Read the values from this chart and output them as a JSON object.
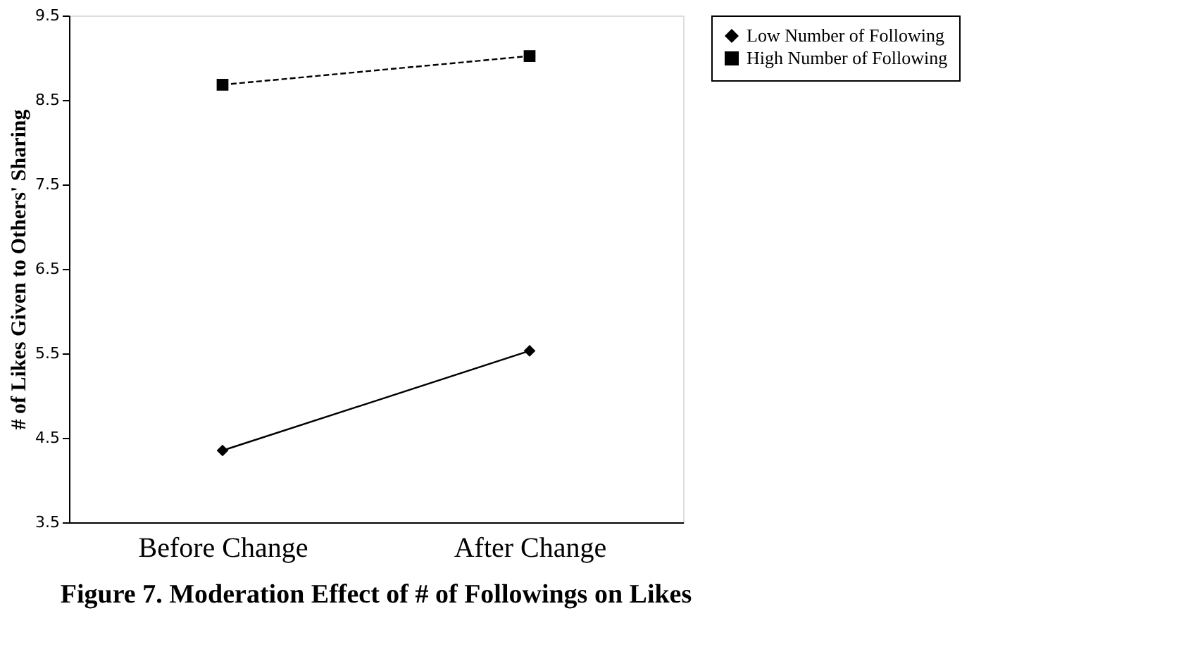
{
  "chart_data": {
    "type": "line",
    "title": "Figure 7. Moderation Effect of # of Followings on Likes",
    "ylabel": "# of Likes Given to Others' Sharing",
    "categories": [
      "Before Change",
      "After Change"
    ],
    "series": [
      {
        "name": "Low Number of Following",
        "color": "#000000",
        "values": [
          4.35,
          5.53
        ],
        "marker": "diamond",
        "line_style": "solid"
      },
      {
        "name": "High Number of Following",
        "color": "#000000",
        "values": [
          8.68,
          9.02
        ],
        "marker": "square",
        "line_style": "dashed"
      }
    ],
    "ylim": [
      3.5,
      9.5
    ],
    "yticks": [
      3.5,
      4.5,
      5.5,
      6.5,
      7.5,
      8.5,
      9.5
    ],
    "grid": false,
    "legend": "right"
  }
}
